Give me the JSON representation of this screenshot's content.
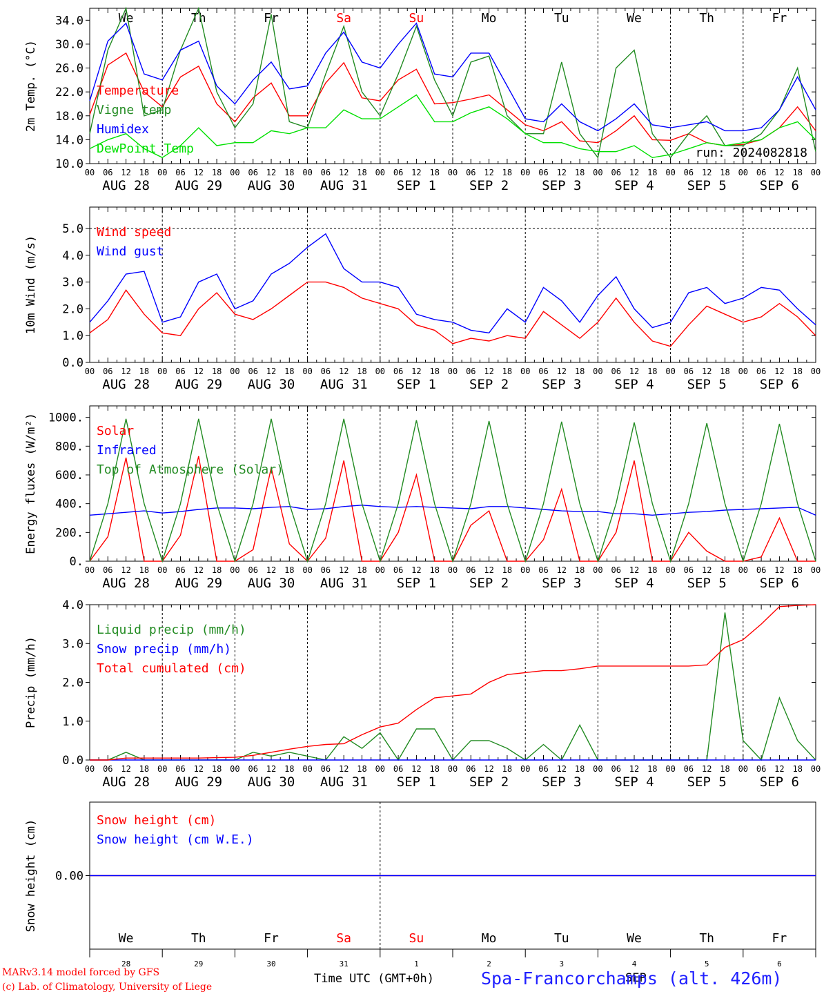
{
  "x_hours": [
    0,
    6,
    12,
    18,
    24,
    30,
    36,
    42,
    48,
    54,
    60,
    66,
    72,
    78,
    84,
    90,
    96,
    102,
    108,
    114,
    120,
    126,
    132,
    138,
    144,
    150,
    156,
    162,
    168,
    174,
    180,
    186,
    192,
    198,
    204,
    210,
    216,
    222,
    228,
    234,
    240
  ],
  "hour_tick_labels": [
    "00",
    "06",
    "12",
    "18"
  ],
  "date_labels": [
    "AUG 28",
    "AUG 29",
    "AUG 30",
    "AUG 31",
    "SEP  1",
    "SEP  2",
    "SEP  3",
    "SEP  4",
    "SEP  5",
    "SEP  6"
  ],
  "weekday_labels": [
    "We",
    "Th",
    "Fr",
    "Sa",
    "Su",
    "Mo",
    "Tu",
    "We",
    "Th",
    "Fr"
  ],
  "weekend_indices": [
    3,
    4
  ],
  "weekend_color": "#ff0000",
  "day_numbers": [
    "28",
    "29",
    "30",
    "31",
    "1",
    "2",
    "3",
    "4",
    "5",
    "6"
  ],
  "month_label_snow": "SEP",
  "run_label": "run: 2024082818",
  "xlabel": "Time UTC (GMT+0h)",
  "station_label": "Spa-Francorchamps (alt. 426m)",
  "credit_lines": [
    "MARv3.14 model forced by GFS",
    "(c) Lab. of Climatology, University of Liege"
  ],
  "chart_data": [
    {
      "type": "line",
      "ylabel": "2m Temp. (°C)",
      "ylim": [
        10,
        36
      ],
      "yticks": [
        10,
        14,
        18,
        22,
        26,
        30,
        34
      ],
      "tick_decimals": 1,
      "tick_suffix": "",
      "series": [
        {
          "name": "Temperature",
          "color": "#ff0000",
          "values": [
            18.2,
            26.5,
            28.5,
            22,
            19.5,
            24.5,
            26.3,
            20,
            17,
            21,
            23.5,
            18,
            18,
            23.5,
            26.9,
            21,
            20.5,
            24,
            25.8,
            20,
            20.2,
            20.8,
            21.5,
            19,
            16.5,
            15.5,
            17,
            13.8,
            13.5,
            15.5,
            18,
            14,
            13.9,
            15,
            13.5,
            13,
            13.2,
            14,
            16,
            19.5,
            15.5
          ]
        },
        {
          "name": "Vigne temp",
          "color": "#228b22",
          "values": [
            15,
            29,
            36,
            18,
            19,
            29,
            36,
            22,
            16,
            20,
            35,
            17,
            16,
            25,
            33,
            22,
            18,
            25,
            33,
            24,
            18,
            27,
            28,
            18,
            15,
            15,
            27,
            15,
            11,
            26,
            29,
            15,
            11,
            15,
            18,
            13,
            13,
            15,
            19,
            26,
            12
          ]
        },
        {
          "name": "Humidex",
          "color": "#0000ff",
          "values": [
            20.5,
            30.5,
            33.5,
            25,
            24,
            29,
            30.5,
            23,
            20,
            24,
            27,
            22.5,
            23,
            28.5,
            32,
            27,
            26,
            30,
            33.5,
            25,
            24.5,
            28.5,
            28.5,
            23,
            17.5,
            17,
            20,
            17,
            15.5,
            17.5,
            20,
            16.5,
            16,
            16.5,
            17,
            15.5,
            15.5,
            16,
            19,
            24.5,
            19
          ]
        },
        {
          "name": "DewPoint Temp",
          "color": "#00e000",
          "values": [
            12.5,
            14,
            15,
            12.5,
            11,
            13,
            16,
            13,
            13.5,
            13.5,
            15.5,
            15,
            16,
            16,
            19,
            17.5,
            17.5,
            19.5,
            21.5,
            17,
            17,
            18.5,
            19.5,
            17.5,
            15,
            13.5,
            13.5,
            12.5,
            12,
            12,
            13,
            11,
            11.5,
            12.5,
            13.5,
            13,
            13.5,
            14,
            16,
            17,
            14
          ]
        }
      ]
    },
    {
      "type": "line",
      "ylabel": "10m Wind (m/s)",
      "ylim": [
        0,
        5.8
      ],
      "yticks": [
        0,
        1,
        2,
        3,
        4,
        5
      ],
      "tick_decimals": 1,
      "tick_suffix": "",
      "reference_line": 5.0,
      "series": [
        {
          "name": "Wind speed",
          "color": "#ff0000",
          "values": [
            1.1,
            1.6,
            2.7,
            1.8,
            1.1,
            1.0,
            2.0,
            2.6,
            1.8,
            1.6,
            2.0,
            2.5,
            3.0,
            3.0,
            2.8,
            2.4,
            2.2,
            2.0,
            1.4,
            1.2,
            0.7,
            0.9,
            0.8,
            1.0,
            0.9,
            1.9,
            1.4,
            0.9,
            1.5,
            2.4,
            1.5,
            0.8,
            0.6,
            1.4,
            2.1,
            1.8,
            1.5,
            1.7,
            2.2,
            1.7,
            1.0
          ]
        },
        {
          "name": "Wind gust",
          "color": "#0000ff",
          "values": [
            1.5,
            2.3,
            3.3,
            3.4,
            1.5,
            1.7,
            3.0,
            3.3,
            2.0,
            2.3,
            3.3,
            3.7,
            4.3,
            4.8,
            3.5,
            3.0,
            3.0,
            2.8,
            1.8,
            1.6,
            1.5,
            1.2,
            1.1,
            2.0,
            1.5,
            2.8,
            2.3,
            1.5,
            2.5,
            3.2,
            2.0,
            1.3,
            1.5,
            2.6,
            2.8,
            2.2,
            2.4,
            2.8,
            2.7,
            2.0,
            1.4
          ]
        }
      ]
    },
    {
      "type": "line",
      "ylabel": "Energy fluxes (W/m²)",
      "ylim": [
        0,
        1080
      ],
      "yticks": [
        0,
        200,
        400,
        600,
        800,
        1000
      ],
      "tick_decimals": 0,
      "tick_suffix": ".",
      "series": [
        {
          "name": "Solar",
          "color": "#ff0000",
          "values": [
            0,
            170,
            720,
            0,
            0,
            180,
            730,
            0,
            0,
            80,
            650,
            120,
            0,
            160,
            700,
            0,
            0,
            200,
            600,
            0,
            0,
            250,
            350,
            0,
            0,
            150,
            500,
            0,
            0,
            200,
            700,
            0,
            0,
            200,
            70,
            0,
            0,
            30,
            300,
            0,
            0
          ]
        },
        {
          "name": "Infrared",
          "color": "#0000ff",
          "values": [
            320,
            330,
            340,
            350,
            335,
            345,
            360,
            370,
            370,
            365,
            375,
            380,
            360,
            365,
            380,
            390,
            380,
            375,
            380,
            375,
            370,
            365,
            380,
            380,
            370,
            360,
            350,
            345,
            345,
            330,
            330,
            320,
            330,
            340,
            345,
            355,
            360,
            365,
            370,
            375,
            320
          ]
        },
        {
          "name": "Top of Atmosphere (Solar)",
          "color": "#228b22",
          "values": [
            0,
            400,
            990,
            400,
            0,
            400,
            990,
            400,
            0,
            400,
            990,
            400,
            0,
            400,
            990,
            400,
            0,
            400,
            980,
            400,
            0,
            400,
            975,
            400,
            0,
            400,
            970,
            400,
            0,
            400,
            965,
            400,
            0,
            400,
            960,
            400,
            0,
            400,
            955,
            400,
            0
          ]
        }
      ]
    },
    {
      "type": "line",
      "ylabel": "Precip (mm/h)",
      "ylim": [
        0,
        4.0
      ],
      "yticks": [
        0,
        1,
        2,
        3,
        4
      ],
      "tick_decimals": 1,
      "tick_suffix": "",
      "series": [
        {
          "name": "Liquid precip (mm/h)",
          "color": "#228b22",
          "values": [
            0,
            0,
            0.2,
            0,
            0,
            0,
            0,
            0,
            0,
            0.2,
            0.1,
            0.2,
            0.1,
            0,
            0.6,
            0.3,
            0.7,
            0,
            0.8,
            0.8,
            0,
            0.5,
            0.5,
            0.3,
            0,
            0.4,
            0,
            0.9,
            0,
            0,
            0,
            0,
            0,
            0,
            0,
            3.8,
            0.5,
            0,
            1.6,
            0.5,
            0
          ]
        },
        {
          "name": "Snow precip (mm/h)",
          "color": "#0000ff",
          "values": [
            0,
            0,
            0,
            0,
            0,
            0,
            0,
            0,
            0,
            0,
            0,
            0,
            0,
            0,
            0,
            0,
            0,
            0,
            0,
            0,
            0,
            0,
            0,
            0,
            0,
            0,
            0,
            0,
            0,
            0,
            0,
            0,
            0,
            0,
            0,
            0,
            0,
            0,
            0,
            0,
            0
          ]
        },
        {
          "name": "Total cumulated (cm)",
          "color": "#ff0000",
          "values": [
            0,
            0,
            0.05,
            0.05,
            0.05,
            0.05,
            0.05,
            0.06,
            0.07,
            0.12,
            0.2,
            0.28,
            0.35,
            0.4,
            0.42,
            0.65,
            0.85,
            0.95,
            1.3,
            1.6,
            1.65,
            1.7,
            2.0,
            2.2,
            2.25,
            2.3,
            2.3,
            2.35,
            2.42,
            2.42,
            2.42,
            2.42,
            2.42,
            2.42,
            2.45,
            2.9,
            3.1,
            3.5,
            3.95,
            3.98,
            4.0
          ]
        }
      ]
    },
    {
      "type": "line",
      "ylabel": "Snow height (cm)",
      "ylim": [
        -1,
        1
      ],
      "yticks": [
        0
      ],
      "tick_decimals": 2,
      "tick_suffix": "",
      "series": [
        {
          "name": "Snow height (cm)",
          "color": "#ff0000",
          "values": [
            0,
            0,
            0,
            0,
            0,
            0,
            0,
            0,
            0,
            0,
            0,
            0,
            0,
            0,
            0,
            0,
            0,
            0,
            0,
            0,
            0,
            0,
            0,
            0,
            0,
            0,
            0,
            0,
            0,
            0,
            0,
            0,
            0,
            0,
            0,
            0,
            0,
            0,
            0,
            0,
            0
          ]
        },
        {
          "name": "Snow height (cm W.E.)",
          "color": "#0000ff",
          "values": [
            0,
            0,
            0,
            0,
            0,
            0,
            0,
            0,
            0,
            0,
            0,
            0,
            0,
            0,
            0,
            0,
            0,
            0,
            0,
            0,
            0,
            0,
            0,
            0,
            0,
            0,
            0,
            0,
            0,
            0,
            0,
            0,
            0,
            0,
            0,
            0,
            0,
            0,
            0,
            0,
            0
          ]
        }
      ]
    }
  ]
}
